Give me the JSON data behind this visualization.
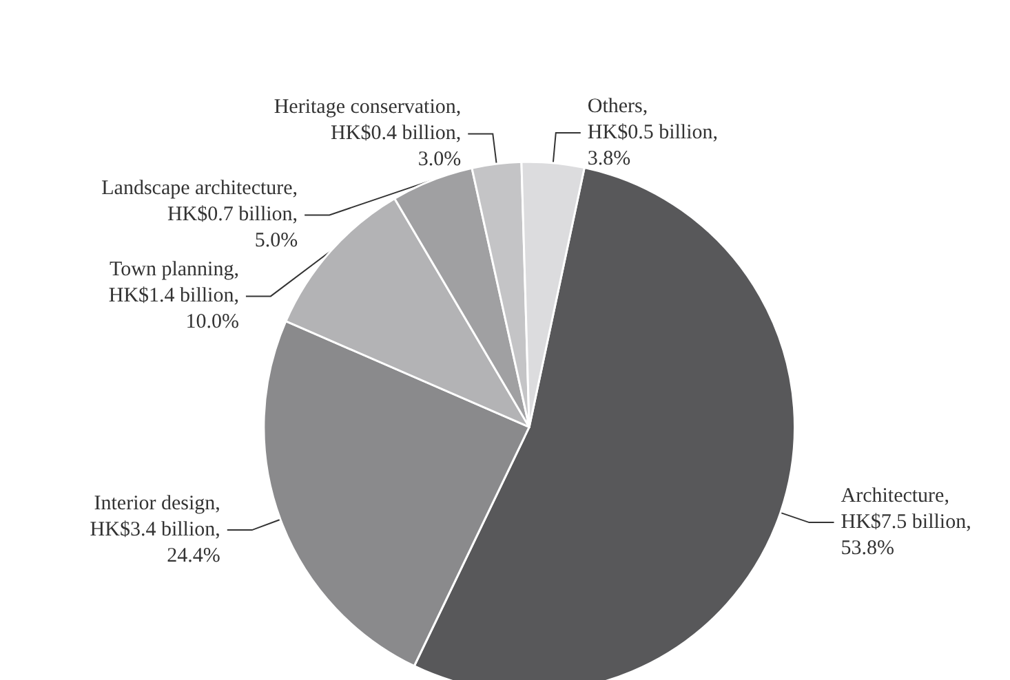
{
  "chart_data": {
    "type": "pie",
    "categories": [
      "Architecture",
      "Interior design",
      "Town planning",
      "Landscape architecture",
      "Heritage conservation",
      "Others"
    ],
    "values": [
      53.8,
      24.4,
      10.0,
      5.0,
      3.0,
      3.8
    ],
    "value_labels": [
      ", HK$7.5 billion, 53.8%",
      ", HK$3.4 billion, 24.4%",
      ", HK$1.4 billion, 10.0%",
      ", HK$0.7 billion, 5.0%",
      ", HK$0.4 billion, 3.0%",
      ", HK$0.5 billion, 3.8%"
    ],
    "colors": [
      "#58585a",
      "#8a8a8c",
      "#b3b3b5",
      "#a0a0a2",
      "#c4c4c6",
      "#dcdcde"
    ],
    "legend": false
  }
}
